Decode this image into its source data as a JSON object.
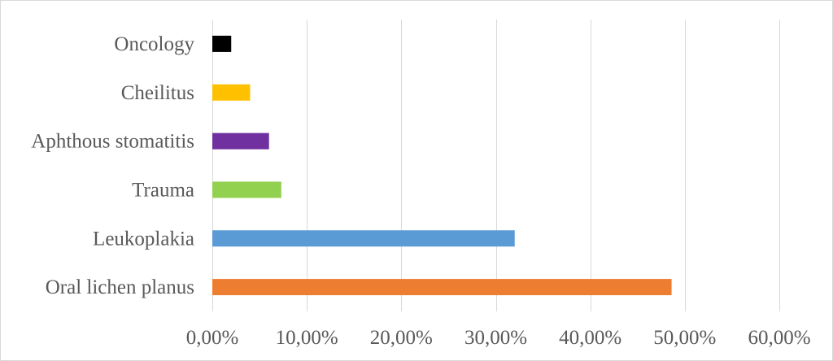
{
  "chart_data": {
    "type": "bar",
    "orientation": "horizontal",
    "categories": [
      "Oral lichen planus",
      "Leukoplakia",
      "Trauma",
      "Aphthous stomatitis",
      "Cheilitus",
      "Oncology"
    ],
    "values": [
      0.486,
      0.32,
      0.073,
      0.06,
      0.04,
      0.02
    ],
    "colors": [
      "#ed7d31",
      "#5b9bd5",
      "#92d050",
      "#7030a0",
      "#ffc000",
      "#000000"
    ],
    "xlim": [
      0,
      0.6
    ],
    "xticks": [
      0,
      0.1,
      0.2,
      0.3,
      0.4,
      0.5,
      0.6
    ],
    "xtick_labels": [
      "0,00%",
      "10,00%",
      "20,00%",
      "30,00%",
      "40,00%",
      "50,00%",
      "60,00%"
    ],
    "grid": "vertical",
    "legend": "none",
    "title": "",
    "xlabel": "",
    "ylabel": ""
  }
}
